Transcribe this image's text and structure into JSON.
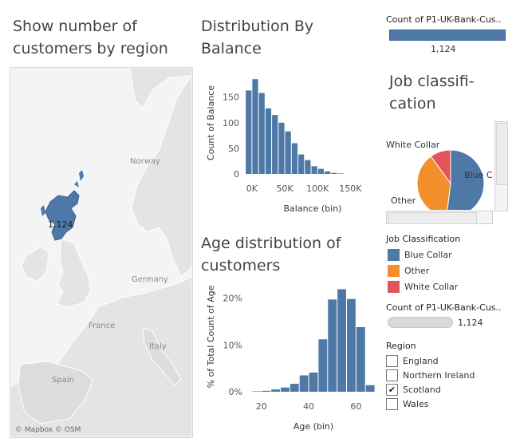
{
  "map": {
    "title": "Show number of customers by region",
    "labels": {
      "norway": "Norway",
      "germany": "Germany",
      "france": "France",
      "italy": "Italy",
      "spain": "Spain"
    },
    "value_label": "1,124",
    "attribution": "© Mapbox © OSM",
    "highlight_color": "#4e79a7"
  },
  "balance_chart": {
    "title": "Distribution By Balance",
    "chart_data": {
      "type": "bar",
      "title": "Distribution By Balance",
      "xlabel": "Balance (bin)",
      "ylabel": "Count of Balance",
      "x_ticks": [
        "0K",
        "50K",
        "100K",
        "150K"
      ],
      "x_tick_values": [
        0,
        50000,
        100000,
        150000
      ],
      "y_ticks": [
        "0",
        "50",
        "100",
        "150"
      ],
      "y_tick_values": [
        0,
        50,
        100,
        150
      ],
      "ylim": [
        0,
        190
      ],
      "xlim": [
        -12000,
        192000
      ],
      "bin_width": 10000,
      "bin_starts": [
        -10000,
        0,
        10000,
        20000,
        30000,
        40000,
        50000,
        60000,
        70000,
        80000,
        90000,
        100000,
        110000,
        120000,
        130000,
        140000,
        150000,
        160000,
        170000
      ],
      "values": [
        163,
        185,
        158,
        128,
        115,
        100,
        83,
        60,
        38,
        27,
        15,
        10,
        5,
        2,
        1,
        0,
        0,
        0,
        0
      ],
      "color": "#4e79a7"
    }
  },
  "age_chart": {
    "title": "Age distribution of customers",
    "chart_data": {
      "type": "bar",
      "title": "Age distribution of customers",
      "xlabel": "Age (bin)",
      "ylabel": "% of Total Count of Age",
      "x_ticks": [
        "20",
        "40",
        "60"
      ],
      "x_tick_values": [
        20,
        40,
        60
      ],
      "y_ticks": [
        "0%",
        "10%",
        "20%"
      ],
      "y_tick_values": [
        0,
        10,
        20
      ],
      "ylim": [
        0,
        23
      ],
      "xlim": [
        14,
        70
      ],
      "bin_width": 4,
      "bin_starts": [
        16,
        20,
        24,
        28,
        32,
        36,
        40,
        44,
        48,
        52,
        56,
        60,
        64
      ],
      "values": [
        0.1,
        0.2,
        0.5,
        0.9,
        1.7,
        3.5,
        4.1,
        11.2,
        19.7,
        21.9,
        19.8,
        13.8,
        1.4
      ],
      "color": "#4e79a7"
    }
  },
  "kpi_top": {
    "title": "Count of P1-UK-Bank-Cus..",
    "value": "1,124",
    "bar_color": "#4e79a7"
  },
  "job_chart": {
    "title": "Job classifi- cation",
    "chart_data": {
      "type": "pie",
      "categories": [
        "Blue Collar",
        "Other",
        "White Collar"
      ],
      "values": [
        52,
        38,
        10
      ],
      "colors": [
        "#4e79a7",
        "#f28e2b",
        "#e15759"
      ]
    },
    "visible_labels": {
      "white_collar": "White Collar",
      "blue_collar": "Blue C",
      "other": "Other"
    }
  },
  "legend": {
    "title": "Job Classification",
    "items": [
      {
        "label": "Blue Collar",
        "color": "#4e79a7"
      },
      {
        "label": "Other",
        "color": "#f28e2b"
      },
      {
        "label": "White Collar",
        "color": "#e15759"
      }
    ]
  },
  "kpi_bottom": {
    "title": "Count of P1-UK-Bank-Cus..",
    "value": "1,124"
  },
  "region_filter": {
    "title": "Region",
    "items": [
      {
        "label": "England",
        "checked": false,
        "mark": ""
      },
      {
        "label": "Northern Ireland",
        "checked": false,
        "mark": ""
      },
      {
        "label": "Scotland",
        "checked": true,
        "mark": "✔"
      },
      {
        "label": "Wales",
        "checked": false,
        "mark": ""
      }
    ]
  }
}
